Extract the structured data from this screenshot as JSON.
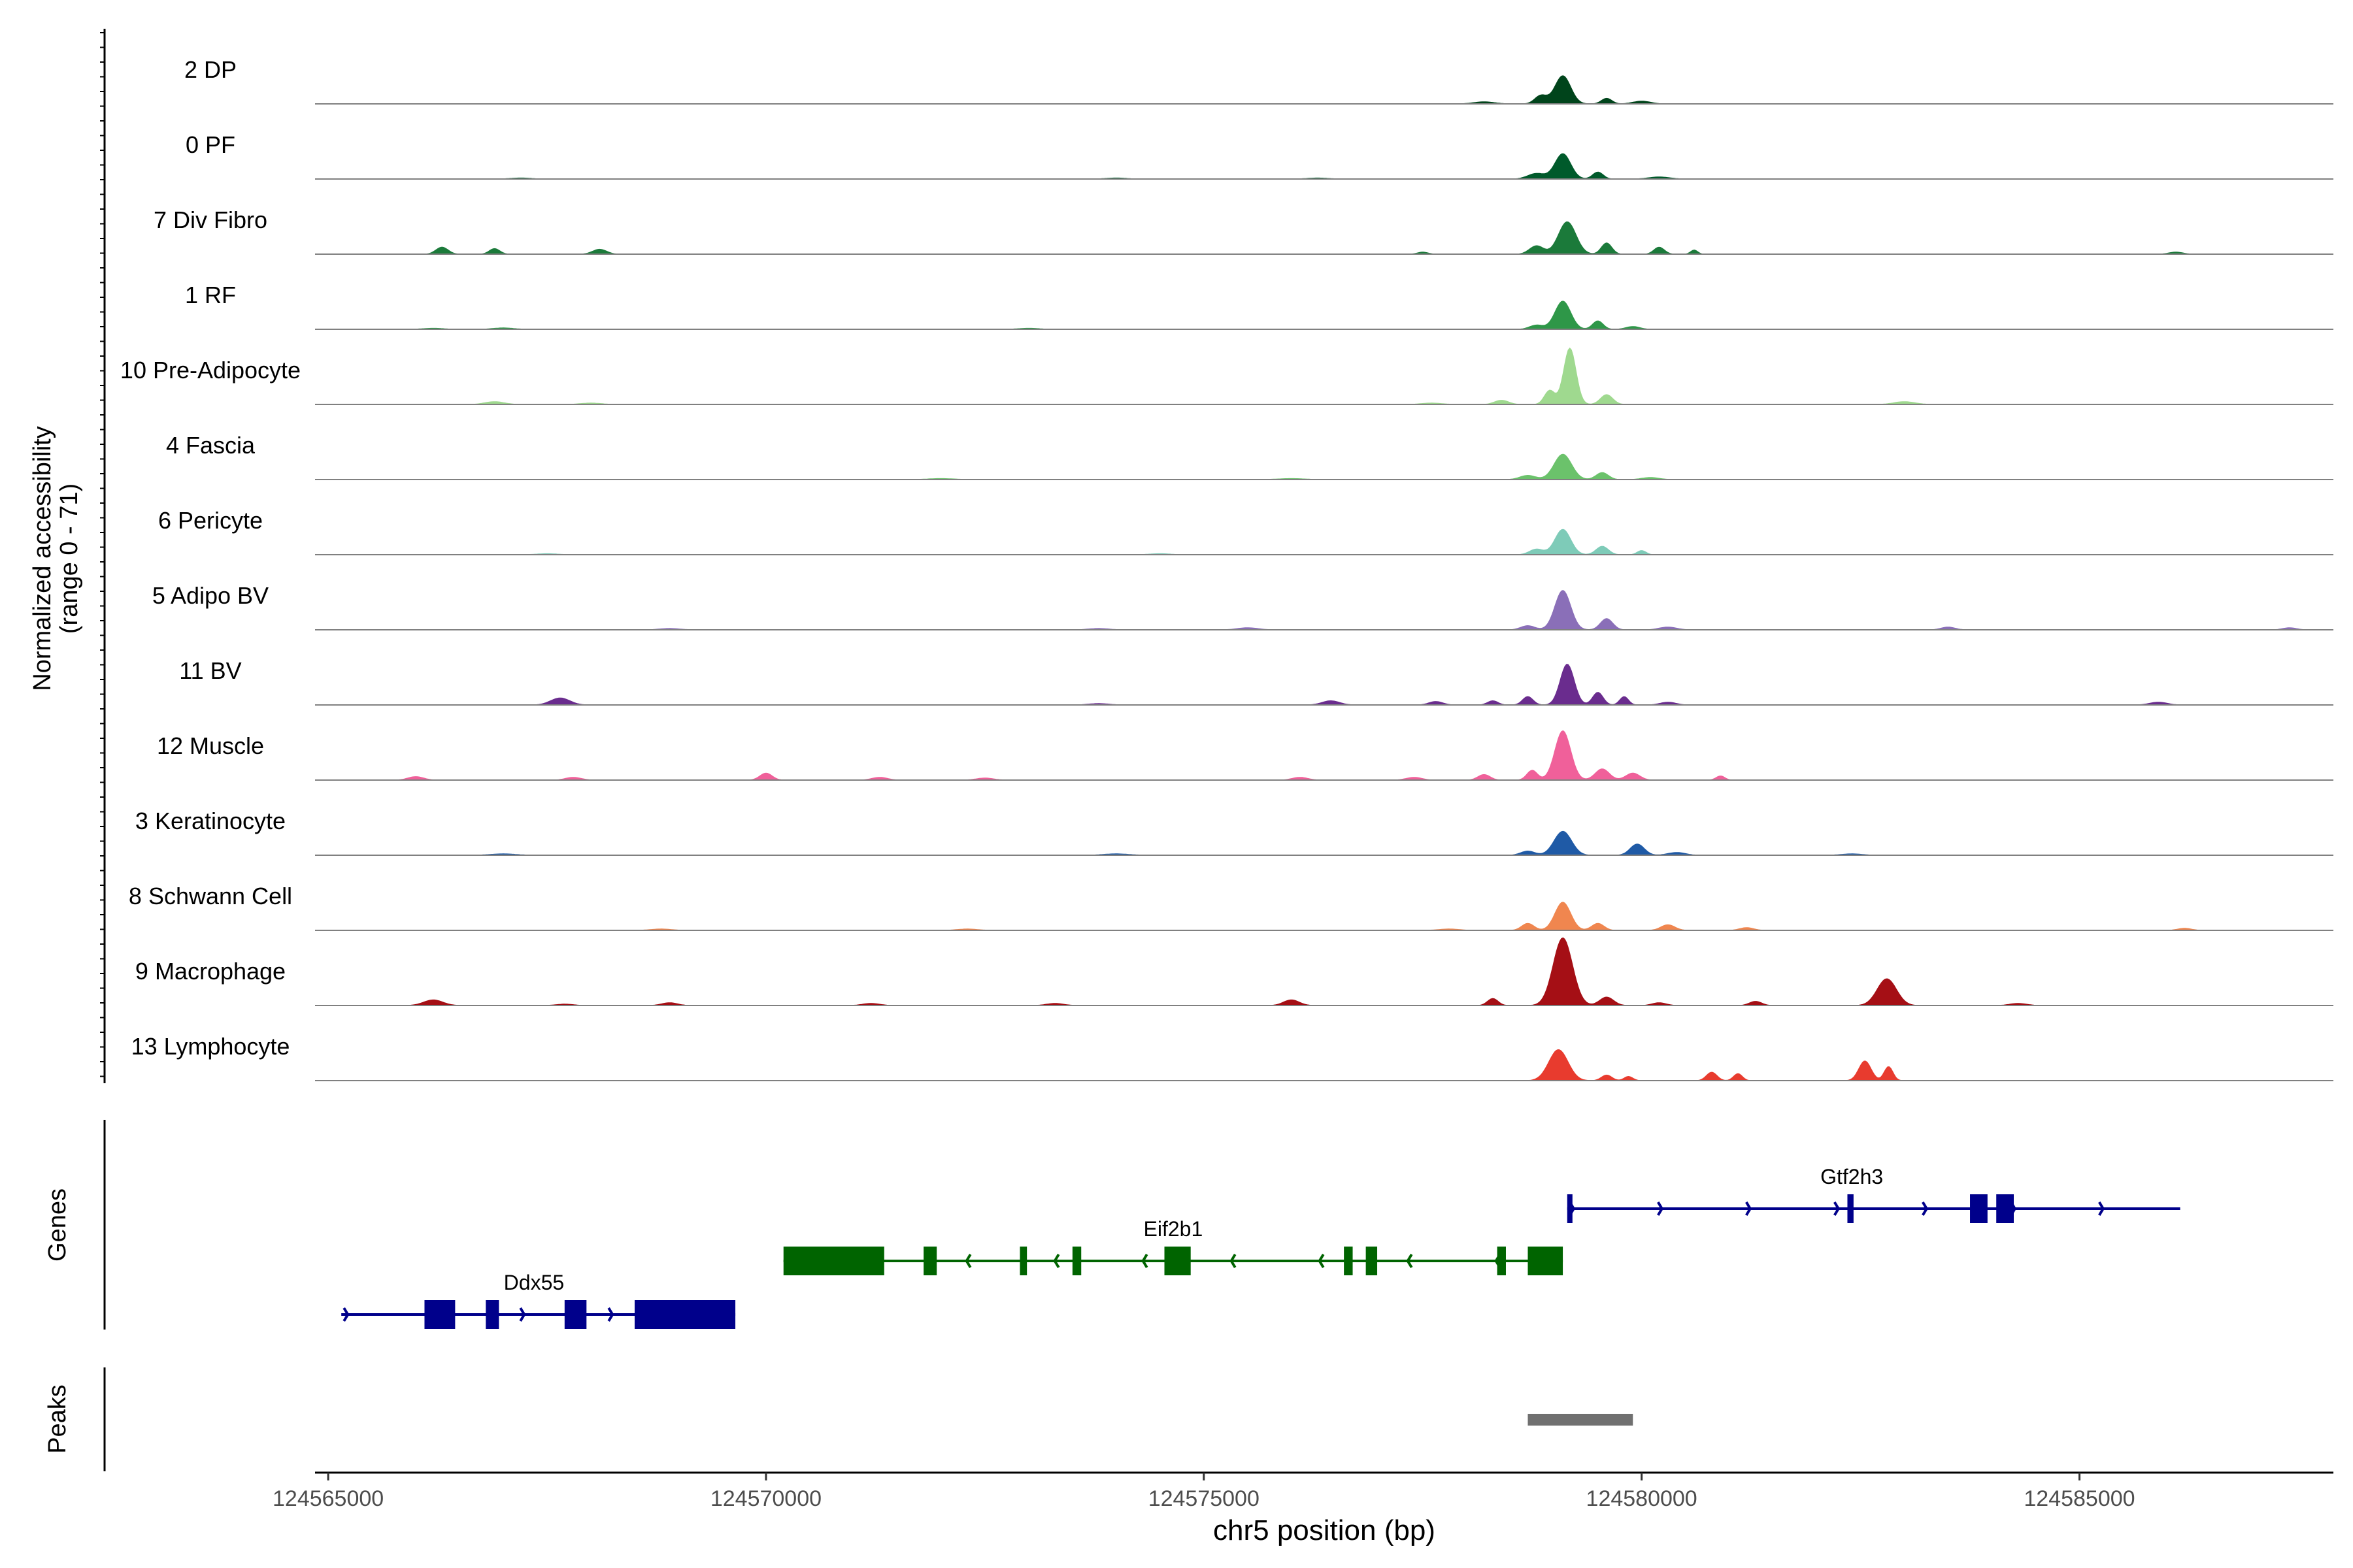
{
  "chart_data": {
    "type": "area",
    "title": "",
    "ylabel_line1": "Normalized accessibility",
    "ylabel_line2": "(range 0 - 71)",
    "ylim": [
      0,
      71
    ],
    "xlabel": "chr5 position (bp)",
    "xlim": [
      124564850,
      124587900
    ],
    "xticks": [
      {
        "value": 124565000,
        "label": "124565000"
      },
      {
        "value": 124570000,
        "label": "124570000"
      },
      {
        "value": 124575000,
        "label": "124575000"
      },
      {
        "value": 124580000,
        "label": "124580000"
      },
      {
        "value": 124585000,
        "label": "124585000"
      }
    ],
    "genes_label": "Genes",
    "peaks_label": "Peaks",
    "tracks": [
      {
        "name": "2 DP",
        "color": "#00441b",
        "peaks": [
          [
            124579100,
            40,
            90
          ],
          [
            124578850,
            12,
            70
          ],
          [
            124579600,
            8,
            60
          ],
          [
            124580000,
            4,
            100
          ],
          [
            124578200,
            3,
            120
          ]
        ]
      },
      {
        "name": "0 PF",
        "color": "#005a2b",
        "peaks": [
          [
            124579100,
            36,
            90
          ],
          [
            124579500,
            10,
            60
          ],
          [
            124578800,
            8,
            100
          ],
          [
            124580200,
            3,
            120
          ],
          [
            124576300,
            1.5,
            120
          ],
          [
            124574000,
            1.5,
            120
          ],
          [
            124567200,
            1.5,
            120
          ]
        ]
      },
      {
        "name": "7 Div Fibro",
        "color": "#1b7a3a",
        "peaks": [
          [
            124579150,
            46,
            100
          ],
          [
            124578800,
            12,
            80
          ],
          [
            124579600,
            16,
            60
          ],
          [
            124580200,
            10,
            60
          ],
          [
            124580600,
            6,
            40
          ],
          [
            124566300,
            10,
            70
          ],
          [
            124566900,
            8,
            60
          ],
          [
            124568100,
            7,
            80
          ],
          [
            124577500,
            3,
            60
          ],
          [
            124586100,
            3,
            80
          ]
        ]
      },
      {
        "name": "1 RF",
        "color": "#2e9748",
        "peaks": [
          [
            124579100,
            40,
            90
          ],
          [
            124579500,
            12,
            60
          ],
          [
            124578800,
            6,
            80
          ],
          [
            124579900,
            4,
            80
          ],
          [
            124567000,
            2,
            120
          ],
          [
            124566200,
            1.5,
            120
          ],
          [
            124573000,
            1.5,
            120
          ]
        ]
      },
      {
        "name": "10 Pre-Adipocyte",
        "color": "#9fd98f",
        "peaks": [
          [
            124579180,
            80,
            70
          ],
          [
            124578950,
            20,
            60
          ],
          [
            124579600,
            14,
            70
          ],
          [
            124578400,
            6,
            80
          ],
          [
            124583000,
            4,
            120
          ],
          [
            124566900,
            4,
            110
          ],
          [
            124568000,
            2,
            120
          ],
          [
            124577600,
            2,
            120
          ]
        ]
      },
      {
        "name": "4 Fascia",
        "color": "#6bc26b",
        "peaks": [
          [
            124579100,
            36,
            100
          ],
          [
            124579550,
            10,
            70
          ],
          [
            124578700,
            6,
            90
          ],
          [
            124580100,
            3,
            100
          ],
          [
            124572000,
            1.5,
            150
          ],
          [
            124576000,
            1.5,
            150
          ]
        ]
      },
      {
        "name": "6 Pericyte",
        "color": "#7ecbb8",
        "peaks": [
          [
            124579100,
            36,
            90
          ],
          [
            124579550,
            12,
            70
          ],
          [
            124578800,
            8,
            80
          ],
          [
            124580000,
            6,
            50
          ],
          [
            124567500,
            1.5,
            120
          ],
          [
            124574500,
            1.5,
            120
          ]
        ]
      },
      {
        "name": "5 Adipo BV",
        "color": "#8a6fb8",
        "peaks": [
          [
            124579100,
            56,
            90
          ],
          [
            124579600,
            16,
            70
          ],
          [
            124578700,
            6,
            80
          ],
          [
            124580300,
            4,
            100
          ],
          [
            124583500,
            4,
            80
          ],
          [
            124587400,
            3,
            80
          ],
          [
            124575500,
            3,
            120
          ],
          [
            124568900,
            2,
            120
          ],
          [
            124573800,
            2,
            120
          ]
        ]
      },
      {
        "name": "11 BV",
        "color": "#6a2c8e",
        "peaks": [
          [
            124579150,
            58,
            80
          ],
          [
            124579500,
            18,
            60
          ],
          [
            124579800,
            12,
            50
          ],
          [
            124578700,
            12,
            60
          ],
          [
            124578300,
            6,
            60
          ],
          [
            124567650,
            10,
            110
          ],
          [
            124576450,
            6,
            100
          ],
          [
            124577650,
            5,
            80
          ],
          [
            124580300,
            4,
            90
          ],
          [
            124585900,
            4,
            100
          ],
          [
            124573800,
            2,
            120
          ]
        ]
      },
      {
        "name": "12 Muscle",
        "color": "#f0609a",
        "peaks": [
          [
            124579100,
            70,
            90
          ],
          [
            124579550,
            16,
            80
          ],
          [
            124579900,
            10,
            80
          ],
          [
            124578750,
            14,
            60
          ],
          [
            124570000,
            10,
            70
          ],
          [
            124578200,
            8,
            70
          ],
          [
            124580900,
            6,
            50
          ],
          [
            124566000,
            5,
            90
          ],
          [
            124567800,
            4,
            90
          ],
          [
            124571300,
            4,
            90
          ],
          [
            124576100,
            4,
            90
          ],
          [
            124577400,
            4,
            90
          ],
          [
            124572500,
            3,
            100
          ]
        ]
      },
      {
        "name": "3 Keratinocyte",
        "color": "#1f5aa6",
        "peaks": [
          [
            124579100,
            34,
            100
          ],
          [
            124579950,
            16,
            80
          ],
          [
            124578700,
            6,
            80
          ],
          [
            124580400,
            4,
            100
          ],
          [
            124582400,
            2,
            120
          ],
          [
            124567000,
            2,
            150
          ],
          [
            124574000,
            2,
            150
          ]
        ]
      },
      {
        "name": "8 Schwann Cell",
        "color": "#f0864f",
        "peaks": [
          [
            124579100,
            40,
            90
          ],
          [
            124579500,
            10,
            70
          ],
          [
            124578700,
            10,
            70
          ],
          [
            124580300,
            8,
            80
          ],
          [
            124581200,
            4,
            80
          ],
          [
            124586200,
            3,
            80
          ],
          [
            124568800,
            2,
            120
          ],
          [
            124572300,
            2,
            120
          ],
          [
            124577800,
            2,
            120
          ]
        ]
      },
      {
        "name": "9 Macrophage",
        "color": "#a50f15",
        "peaks": [
          [
            124579100,
            96,
            110
          ],
          [
            124582800,
            38,
            110
          ],
          [
            124579600,
            12,
            80
          ],
          [
            124578300,
            10,
            60
          ],
          [
            124581300,
            6,
            70
          ],
          [
            124566200,
            8,
            110
          ],
          [
            124576000,
            8,
            90
          ],
          [
            124568900,
            4,
            90
          ],
          [
            124571200,
            3,
            100
          ],
          [
            124573300,
            3,
            100
          ],
          [
            124584300,
            3,
            100
          ],
          [
            124567700,
            2,
            100
          ],
          [
            124580200,
            4,
            80
          ]
        ]
      },
      {
        "name": "13 Lymphocyte",
        "color": "#e83b2e",
        "peaks": [
          [
            124579050,
            44,
            110
          ],
          [
            124582550,
            28,
            70
          ],
          [
            124582820,
            20,
            50
          ],
          [
            124579600,
            8,
            60
          ],
          [
            124580800,
            12,
            60
          ],
          [
            124581100,
            10,
            50
          ],
          [
            124579850,
            6,
            50
          ]
        ]
      }
    ],
    "genes": [
      {
        "name": "Ddx55",
        "strand": "+",
        "color": "#00008b",
        "row": 2,
        "start": 124565150,
        "end": 124569650,
        "label_x": 124567350,
        "exons": [
          [
            124566100,
            124566450
          ],
          [
            124566800,
            124566950
          ],
          [
            124567700,
            124567950
          ],
          [
            124568500,
            124569650
          ]
        ]
      },
      {
        "name": "Eif2b1",
        "strand": "-",
        "color": "#006400",
        "row": 1,
        "start": 124570200,
        "end": 124579100,
        "label_x": 124574650,
        "exons": [
          [
            124570200,
            124571350
          ],
          [
            124571800,
            124571950
          ],
          [
            124572900,
            124572980
          ],
          [
            124573500,
            124573600
          ],
          [
            124574550,
            124574850
          ],
          [
            124576600,
            124576700
          ],
          [
            124576850,
            124576980
          ],
          [
            124578350,
            124578450
          ],
          [
            124578700,
            124579100
          ]
        ]
      },
      {
        "name": "Gtf2h3",
        "strand": "+",
        "color": "#00008b",
        "row": 0,
        "start": 124579150,
        "end": 124586150,
        "label_x": 124582400,
        "exons": [
          [
            124579150,
            124579210
          ],
          [
            124582350,
            124582420
          ],
          [
            124583750,
            124583950
          ],
          [
            124584050,
            124584250
          ]
        ]
      }
    ],
    "peak_regions": [
      [
        124578700,
        124579900
      ]
    ]
  }
}
